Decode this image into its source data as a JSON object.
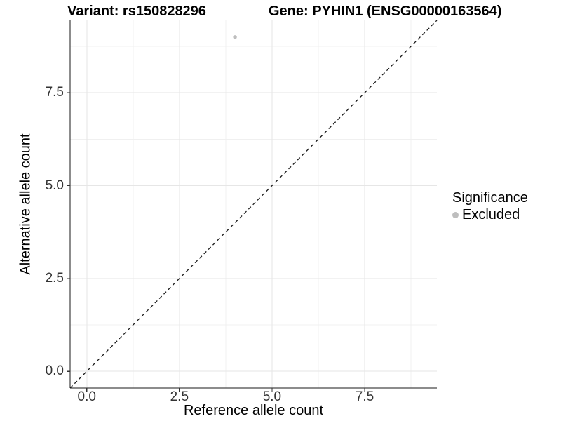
{
  "header": {
    "variant_title": "Variant: rs150828296",
    "gene_title": "Gene: PYHIN1 (ENSG00000163564)"
  },
  "axes": {
    "x": {
      "label": "Reference allele count",
      "tick_labels": [
        "0.0",
        "2.5",
        "5.0",
        "7.5"
      ]
    },
    "y": {
      "label": "Alternative allele count",
      "tick_labels": [
        "0.0",
        "2.5",
        "5.0",
        "7.5"
      ]
    }
  },
  "legend": {
    "title": "Significance",
    "items": [
      {
        "label": "Excluded",
        "color": "#bebebe"
      }
    ]
  },
  "chart_data": {
    "type": "scatter",
    "title": "Variant: rs150828296 | Gene: PYHIN1 (ENSG00000163564)",
    "xlabel": "Reference allele count",
    "ylabel": "Alternative allele count",
    "xlim": [
      -0.45,
      9.45
    ],
    "ylim": [
      -0.45,
      9.45
    ],
    "x_ticks": [
      0,
      2.5,
      5,
      7.5
    ],
    "x_tick_labels": [
      "0.0",
      "2.5",
      "5.0",
      "7.5"
    ],
    "y_ticks": [
      0,
      2.5,
      5,
      7.5
    ],
    "y_tick_labels": [
      "0.0",
      "2.5",
      "5.0",
      "7.5"
    ],
    "minor_ticks": [
      1.25,
      3.75,
      6.25,
      8.75
    ],
    "grid": "on",
    "legend_position": "right",
    "series": [
      {
        "name": "Excluded",
        "color": "#bebebe",
        "points": [
          {
            "x": 4,
            "y": 9
          }
        ]
      }
    ],
    "reference_line": {
      "slope": 1,
      "intercept": 0,
      "style": "dashed",
      "color": "#1a1a1a"
    }
  },
  "colors": {
    "background": "#ffffff",
    "axis_line": "#1a1a1a",
    "tick_mark": "#333333",
    "grid_major": "#e6e6e6",
    "grid_minor": "#f0f0f0",
    "point": "#bebebe"
  }
}
